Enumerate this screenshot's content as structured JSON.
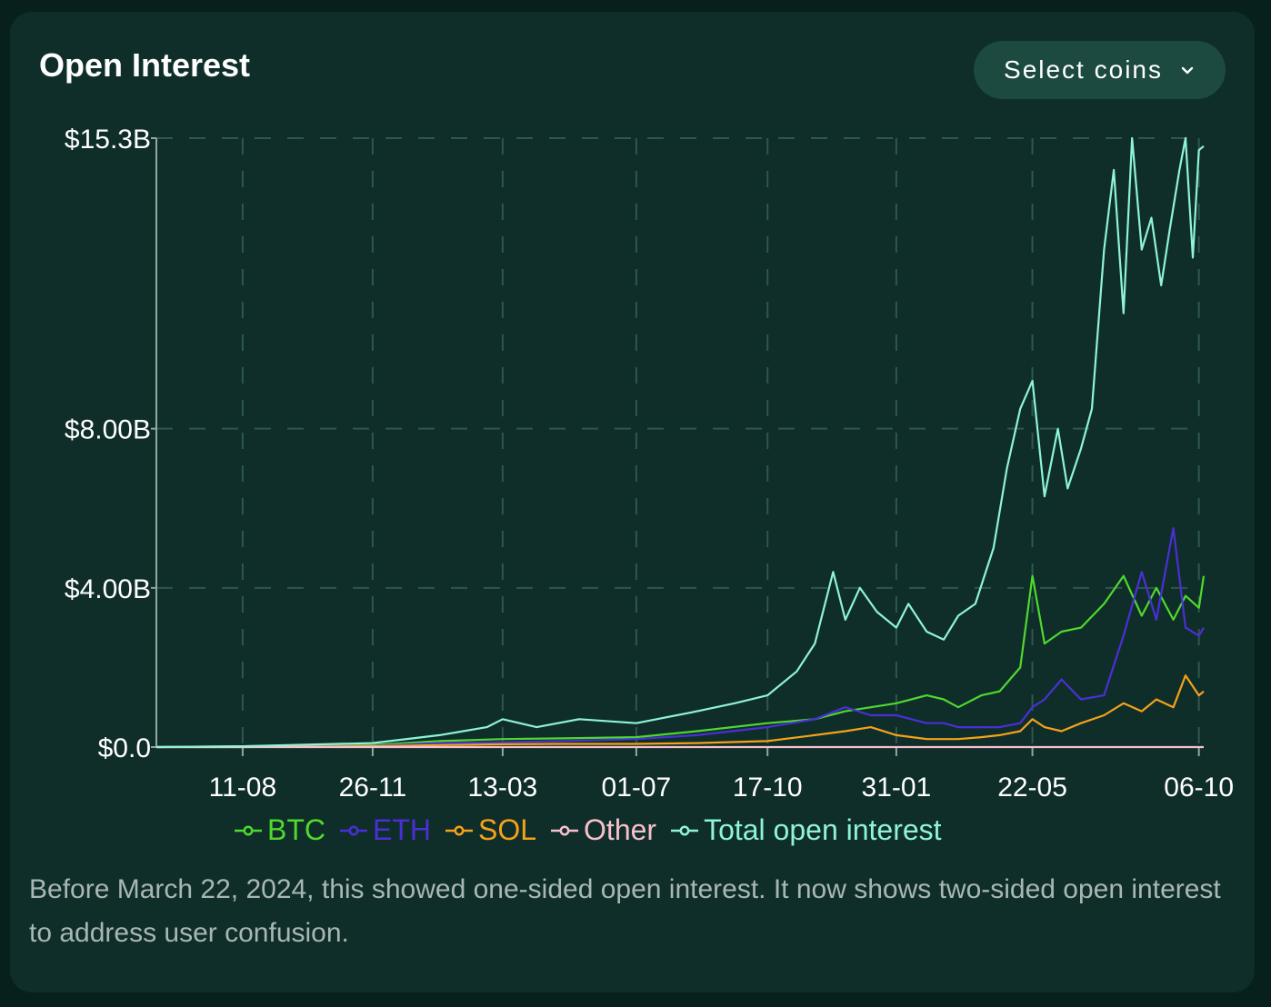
{
  "header": {
    "title": "Open Interest",
    "select_label": "Select coins"
  },
  "note": "Before March 22, 2024, this showed one-sided open interest. It now shows two-sided open interest to address user confusion.",
  "colors": {
    "background": "#0f2e29",
    "grid": "#2f5650",
    "axis": "#8fa8a2",
    "btc": "#4fd92e",
    "eth": "#4a2fd6",
    "sol": "#f5a21a",
    "other": "#f7c0cc",
    "total": "#8ff3d8"
  },
  "chart_data": {
    "type": "line",
    "title": "Open Interest",
    "xlabel": "",
    "ylabel": "",
    "y_tick_labels": [
      "$0.0",
      "$4.00B",
      "$8.00B",
      "$15.3B"
    ],
    "y_ticks": [
      0,
      4.0,
      8.0,
      15.3
    ],
    "ylim": [
      0,
      15.3
    ],
    "x_tick_labels": [
      "11-08",
      "26-11",
      "13-03",
      "01-07",
      "17-10",
      "31-01",
      "22-05",
      "06-10"
    ],
    "x_ticks": [
      "2022-08-11",
      "2022-11-26",
      "2023-03-13",
      "2023-07-01",
      "2023-10-17",
      "2024-01-31",
      "2024-05-22",
      "2024-10-06"
    ],
    "xlim": [
      "2022-06-01",
      "2024-10-10"
    ],
    "grid": true,
    "legend_position": "bottom",
    "series": [
      {
        "name": "BTC",
        "color": "#4fd92e",
        "x": [
          "2022-06-01",
          "2022-08-11",
          "2022-11-26",
          "2023-01-20",
          "2023-03-13",
          "2023-05-01",
          "2023-07-01",
          "2023-08-20",
          "2023-10-17",
          "2023-11-25",
          "2023-12-20",
          "2024-01-10",
          "2024-01-31",
          "2024-02-25",
          "2024-03-10",
          "2024-03-22",
          "2024-04-10",
          "2024-04-25",
          "2024-05-12",
          "2024-05-22",
          "2024-06-01",
          "2024-06-15",
          "2024-07-01",
          "2024-07-20",
          "2024-08-05",
          "2024-08-20",
          "2024-09-01",
          "2024-09-15",
          "2024-09-25",
          "2024-10-06",
          "2024-10-10"
        ],
        "y": [
          0.0,
          0.02,
          0.05,
          0.15,
          0.2,
          0.22,
          0.25,
          0.4,
          0.6,
          0.7,
          0.9,
          1.0,
          1.1,
          1.3,
          1.2,
          1.0,
          1.3,
          1.4,
          2.0,
          4.3,
          2.6,
          2.9,
          3.0,
          3.6,
          4.3,
          3.3,
          4.0,
          3.2,
          3.8,
          3.5,
          4.3
        ]
      },
      {
        "name": "ETH",
        "color": "#4a2fd6",
        "x": [
          "2022-06-01",
          "2022-08-11",
          "2022-11-26",
          "2023-01-20",
          "2023-03-13",
          "2023-05-01",
          "2023-07-01",
          "2023-08-20",
          "2023-10-17",
          "2023-11-25",
          "2023-12-20",
          "2024-01-10",
          "2024-01-31",
          "2024-02-25",
          "2024-03-10",
          "2024-03-22",
          "2024-04-10",
          "2024-04-25",
          "2024-05-12",
          "2024-05-22",
          "2024-06-01",
          "2024-06-15",
          "2024-07-01",
          "2024-07-20",
          "2024-08-05",
          "2024-08-20",
          "2024-09-01",
          "2024-09-15",
          "2024-09-25",
          "2024-10-06",
          "2024-10-10"
        ],
        "y": [
          0.0,
          0.01,
          0.03,
          0.1,
          0.12,
          0.15,
          0.2,
          0.3,
          0.5,
          0.7,
          1.0,
          0.8,
          0.8,
          0.6,
          0.6,
          0.5,
          0.5,
          0.5,
          0.6,
          1.0,
          1.2,
          1.7,
          1.2,
          1.3,
          2.8,
          4.4,
          3.2,
          5.5,
          3.0,
          2.8,
          3.0
        ]
      },
      {
        "name": "SOL",
        "color": "#f5a21a",
        "x": [
          "2022-06-01",
          "2022-08-11",
          "2022-11-26",
          "2023-01-20",
          "2023-03-13",
          "2023-05-01",
          "2023-07-01",
          "2023-08-20",
          "2023-10-17",
          "2023-11-25",
          "2023-12-20",
          "2024-01-10",
          "2024-01-31",
          "2024-02-25",
          "2024-03-10",
          "2024-03-22",
          "2024-04-10",
          "2024-04-25",
          "2024-05-12",
          "2024-05-22",
          "2024-06-01",
          "2024-06-15",
          "2024-07-01",
          "2024-07-20",
          "2024-08-05",
          "2024-08-20",
          "2024-09-01",
          "2024-09-15",
          "2024-09-25",
          "2024-10-06",
          "2024-10-10"
        ],
        "y": [
          0.0,
          0.0,
          0.02,
          0.05,
          0.07,
          0.08,
          0.08,
          0.1,
          0.15,
          0.3,
          0.4,
          0.5,
          0.3,
          0.2,
          0.2,
          0.2,
          0.25,
          0.3,
          0.4,
          0.7,
          0.5,
          0.4,
          0.6,
          0.8,
          1.1,
          0.9,
          1.2,
          1.0,
          1.8,
          1.3,
          1.4
        ]
      },
      {
        "name": "Other",
        "color": "#f7c0cc",
        "x": [
          "2022-06-01",
          "2024-10-10"
        ],
        "y": [
          0.0,
          0.0
        ]
      },
      {
        "name": "Total open interest",
        "color": "#8ff3d8",
        "x": [
          "2022-06-01",
          "2022-08-11",
          "2022-11-26",
          "2023-01-20",
          "2023-02-28",
          "2023-03-13",
          "2023-04-10",
          "2023-05-15",
          "2023-07-01",
          "2023-08-20",
          "2023-09-20",
          "2023-10-17",
          "2023-11-10",
          "2023-11-25",
          "2023-12-10",
          "2023-12-20",
          "2024-01-01",
          "2024-01-15",
          "2024-01-31",
          "2024-02-10",
          "2024-02-25",
          "2024-03-10",
          "2024-03-22",
          "2024-04-05",
          "2024-04-20",
          "2024-05-01",
          "2024-05-12",
          "2024-05-22",
          "2024-06-01",
          "2024-06-12",
          "2024-06-20",
          "2024-07-01",
          "2024-07-10",
          "2024-07-20",
          "2024-07-28",
          "2024-08-05",
          "2024-08-12",
          "2024-08-20",
          "2024-08-28",
          "2024-09-05",
          "2024-09-12",
          "2024-09-20",
          "2024-09-25",
          "2024-10-01",
          "2024-10-06",
          "2024-10-10"
        ],
        "y": [
          0.0,
          0.02,
          0.1,
          0.3,
          0.5,
          0.7,
          0.5,
          0.7,
          0.6,
          0.9,
          1.1,
          1.3,
          1.9,
          2.6,
          4.4,
          3.2,
          4.0,
          3.4,
          3.0,
          3.6,
          2.9,
          2.7,
          3.3,
          3.6,
          5.0,
          7.0,
          8.5,
          9.2,
          6.3,
          8.0,
          6.5,
          7.5,
          8.5,
          12.5,
          14.5,
          10.9,
          15.3,
          12.5,
          13.3,
          11.6,
          13.0,
          14.5,
          15.3,
          12.3,
          15.0,
          15.1
        ]
      }
    ]
  }
}
